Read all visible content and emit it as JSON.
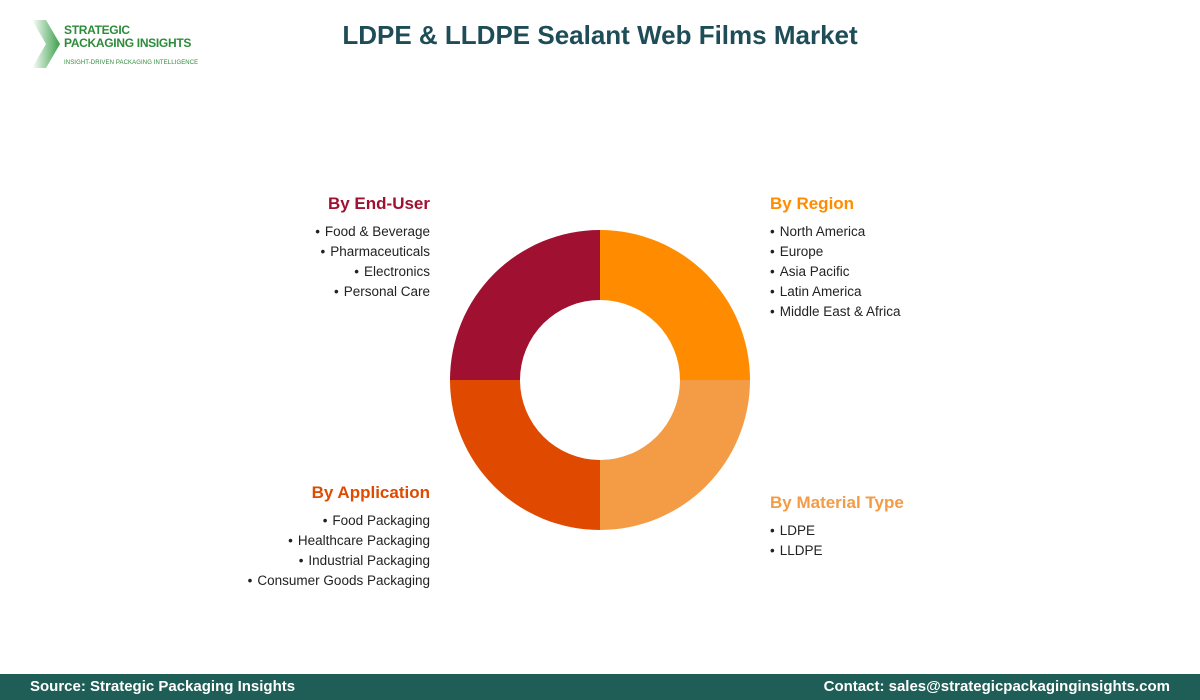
{
  "logo": {
    "line1": "STRATEGIC",
    "line2": "PACKAGING INSIGHTS",
    "tagline": "INSIGHT-DRIVEN PACKAGING INTELLIGENCE"
  },
  "title": "LDPE & LLDPE Sealant Web Films Market",
  "chart_data": {
    "type": "pie",
    "donut": true,
    "title": "LDPE & LLDPE Sealant Web Films Market",
    "segments": [
      {
        "heading": "By Region",
        "value": 25,
        "color": "#ff8c00",
        "heading_color": "#ff8c00",
        "items": [
          "North America",
          "Europe",
          "Asia Pacific",
          "Latin America",
          "Middle East & Africa"
        ]
      },
      {
        "heading": "By Material Type",
        "value": 25,
        "color": "#f49b45",
        "heading_color": "#f49b45",
        "items": [
          "LDPE",
          "LLDPE"
        ]
      },
      {
        "heading": "By Application",
        "value": 25,
        "color": "#e04a00",
        "heading_color": "#e04a00",
        "items": [
          "Food Packaging",
          "Healthcare Packaging",
          "Industrial Packaging",
          "Consumer Goods Packaging"
        ]
      },
      {
        "heading": "By End-User",
        "value": 25,
        "color": "#a01030",
        "heading_color": "#a01030",
        "items": [
          "Food & Beverage",
          "Pharmaceuticals",
          "Electronics",
          "Personal Care"
        ]
      }
    ]
  },
  "footer": {
    "source": "Source: Strategic Packaging Insights",
    "contact": "Contact: sales@strategicpackaginginsights.com",
    "background": "#1e5e56"
  }
}
